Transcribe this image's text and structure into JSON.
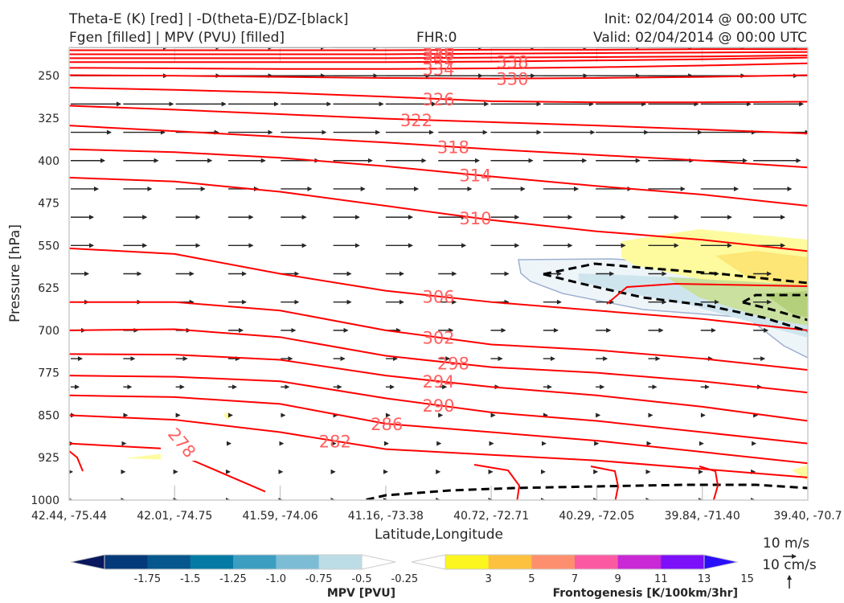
{
  "header": {
    "title_line1": "Theta-E (K) [red] | -D(theta-E)/DZ-[black]",
    "title_line2": "Fgen [filled] | MPV (PVU) [filled]",
    "fhr": "FHR:0",
    "init": "Init: 02/04/2014 @ 00:00 UTC",
    "valid": "Valid: 02/04/2014 @ 00:00 UTC"
  },
  "chart_data": {
    "type": "contour-cross-section",
    "title": "Theta-E (K) [red] | -D(theta-E)/DZ-[black] / Fgen [filled] | MPV (PVU) [filled]",
    "xlabel": "Latitude,Longitude",
    "ylabel": "Pressure [hPa]",
    "x_ticks": [
      "42.44, -75.44",
      "42.01, -74.75",
      "41.59, -74.06",
      "41.16, -73.38",
      "40.72, -72.71",
      "40.29, -72.05",
      "39.84, -71.40",
      "39.40, -70.7"
    ],
    "y_ticks": [
      250,
      325,
      400,
      475,
      550,
      625,
      700,
      775,
      850,
      925,
      1000
    ],
    "ylim": [
      1000,
      200
    ],
    "y_axis_inverted": true,
    "theta_e_contours": {
      "color": "#ff0000",
      "interval": 4,
      "labels": [
        278,
        282,
        286,
        290,
        294,
        298,
        302,
        306,
        310,
        314,
        318,
        322,
        326,
        330,
        334,
        338,
        342,
        346,
        350
      ],
      "lines": [
        {
          "value": 350,
          "p": [
            205,
            205,
            205,
            205,
            204,
            204,
            203,
            203
          ]
        },
        {
          "value": 346,
          "p": [
            212,
            212,
            212,
            212,
            211,
            210,
            209,
            208
          ]
        },
        {
          "value": 342,
          "p": [
            219,
            219,
            219,
            219,
            218,
            217,
            216,
            214
          ]
        },
        {
          "value": 338,
          "p": [
            226,
            226,
            226,
            226,
            225,
            223,
            221,
            218
          ]
        },
        {
          "value": 334,
          "p": [
            236,
            237,
            238,
            238,
            237,
            235,
            232,
            228
          ]
        },
        {
          "value": 330,
          "p": [
            249,
            250,
            252,
            254,
            255,
            254,
            252,
            249
          ]
        },
        {
          "value": 326,
          "p": [
            271,
            275,
            280,
            287,
            295,
            297,
            297,
            296
          ]
        },
        {
          "value": 322,
          "p": [
            303,
            310,
            318,
            326,
            332,
            338,
            345,
            352
          ]
        },
        {
          "value": 318,
          "p": [
            338,
            348,
            358,
            368,
            380,
            390,
            400,
            412
          ]
        },
        {
          "value": 314,
          "p": [
            380,
            385,
            395,
            410,
            428,
            445,
            460,
            480
          ]
        },
        {
          "value": 310,
          "p": [
            430,
            437,
            455,
            480,
            505,
            525,
            540,
            560
          ]
        },
        {
          "value": 306,
          "p": [
            555,
            565,
            600,
            630,
            650,
            665,
            680,
            700
          ]
        },
        {
          "value": 302,
          "p": [
            650,
            650,
            665,
            700,
            725,
            735,
            750,
            770
          ]
        },
        {
          "value": 298,
          "p": [
            700,
            698,
            712,
            745,
            765,
            775,
            790,
            810
          ]
        },
        {
          "value": 294,
          "p": [
            742,
            743,
            752,
            780,
            800,
            815,
            835,
            860
          ]
        },
        {
          "value": 290,
          "p": [
            780,
            782,
            790,
            820,
            845,
            860,
            880,
            900
          ]
        },
        {
          "value": 286,
          "p": [
            815,
            818,
            830,
            865,
            880,
            895,
            915,
            935
          ]
        },
        {
          "value": 282,
          "p": [
            850,
            858,
            880,
            910,
            920,
            930,
            945,
            960
          ]
        },
        {
          "value": 278,
          "p": [
            900,
            910,
            965,
            1000
          ]
        }
      ]
    },
    "dthetae_dz_contour": {
      "color": "#000000",
      "style": "dashed",
      "level": 0
    },
    "wind_vectors": {
      "color": "#262626",
      "reference_horizontal": "10 m/s",
      "reference_vertical": "10 cm/s",
      "direction": "eastward, speed decreasing with height toward surface"
    },
    "mpv_colorbar": {
      "label": "MPV [PVU]",
      "ticks": [
        "-1.75",
        "-1.5",
        "-1.25",
        "-1.0",
        "-0.75",
        "-0.5",
        "-0.25"
      ],
      "colors": [
        "#08175e",
        "#053a7a",
        "#06578e",
        "#057aa5",
        "#3c9ec0",
        "#7cbcd4",
        "#bcdde6",
        "#ffffff"
      ],
      "extend": "both"
    },
    "fgen_colorbar": {
      "label": "Frontogenesis [K/100km/3hr]",
      "ticks": [
        "3",
        "5",
        "7",
        "9",
        "11",
        "13",
        "15"
      ],
      "colors": [
        "#ffffff",
        "#fcf51f",
        "#fdc13f",
        "#fd8f6e",
        "#fb5aa3",
        "#c829d5",
        "#7c10f8",
        "#2a10fa"
      ],
      "extend": "both"
    }
  },
  "legend": {
    "wind_ref_h": "10 m/s",
    "wind_ref_v": "10 cm/s"
  }
}
